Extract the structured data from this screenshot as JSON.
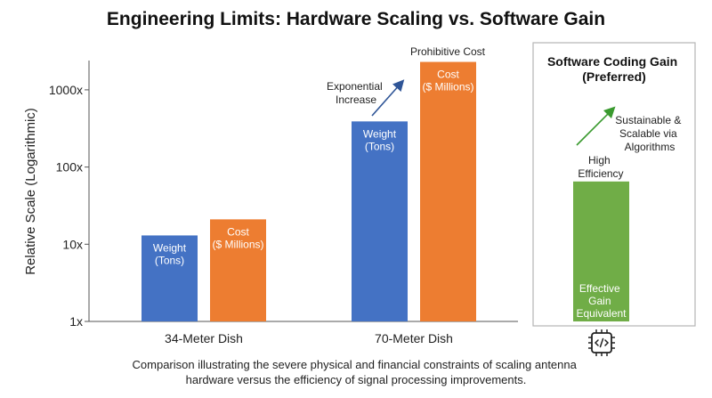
{
  "chart_data": {
    "type": "bar",
    "title": "Engineering Limits: Hardware Scaling vs. Software Gain",
    "ylabel": "Relative Scale (Logarithmic)",
    "y_scale": "log",
    "ylim": [
      1,
      2000
    ],
    "y_ticks": [
      "1x",
      "10x",
      "100x",
      "1000x"
    ],
    "grid": false,
    "groups": [
      {
        "label": "34-Meter Dish",
        "bars": [
          {
            "series": "Weight",
            "label_lines": [
              "Weight",
              "(Tons)"
            ],
            "value": 13,
            "color": "#4472c4"
          },
          {
            "series": "Cost",
            "label_lines": [
              "Cost",
              "($ Millions)"
            ],
            "value": 21,
            "color": "#ed7d31"
          }
        ]
      },
      {
        "label": "70-Meter Dish",
        "bars": [
          {
            "series": "Weight",
            "label_lines": [
              "Weight",
              "(Tons)"
            ],
            "value": 390,
            "color": "#4472c4"
          },
          {
            "series": "Cost",
            "label_lines": [
              "Cost",
              "($ Millions)"
            ],
            "value": 2300,
            "color": "#ed7d31"
          }
        ]
      }
    ],
    "annotations": {
      "exponential": [
        "Exponential",
        "Increase"
      ],
      "prohibitive": "Prohibitive Cost"
    },
    "panel": {
      "title_lines": [
        "Software Coding Gain",
        "(Preferred)"
      ],
      "bar": {
        "value": 65,
        "color": "#70ad47",
        "label_lines": [
          "Effective",
          "Gain",
          "Equivalent"
        ]
      },
      "high_efficiency": [
        "High",
        "Efficiency"
      ],
      "sustainable": [
        "Sustainable &",
        "Scalable via",
        "Algorithms"
      ],
      "icon": "chip-code-icon"
    },
    "caption_lines": [
      "Comparison illustrating the severe physical and financial constraints of scaling antenna",
      "hardware versus the efficiency of signal processing improvements."
    ]
  }
}
